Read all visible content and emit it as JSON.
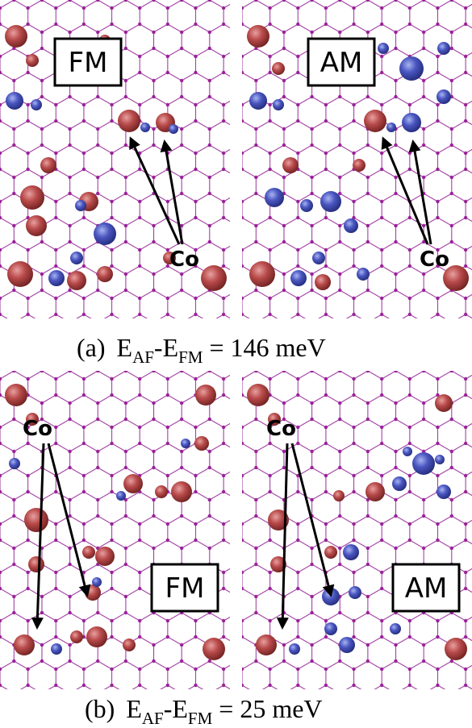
{
  "figure": {
    "parts": [
      {
        "panels": [
          {
            "label": "FM",
            "annotation": "Co"
          },
          {
            "label": "AM",
            "annotation": "Co"
          }
        ],
        "caption": {
          "tag": "(a)",
          "e1": "E",
          "sub1": "AF",
          "e2": "-E",
          "sub2": "FM",
          "rest": "=  146 meV"
        }
      },
      {
        "panels": [
          {
            "label": "FM",
            "annotation": "Co"
          },
          {
            "label": "AM",
            "annotation": "Co"
          }
        ],
        "caption": {
          "tag": "(b)",
          "e1": "E",
          "sub1": "AF",
          "e2": "-E",
          "sub2": "FM",
          "rest": "=  25 meV"
        }
      }
    ]
  }
}
